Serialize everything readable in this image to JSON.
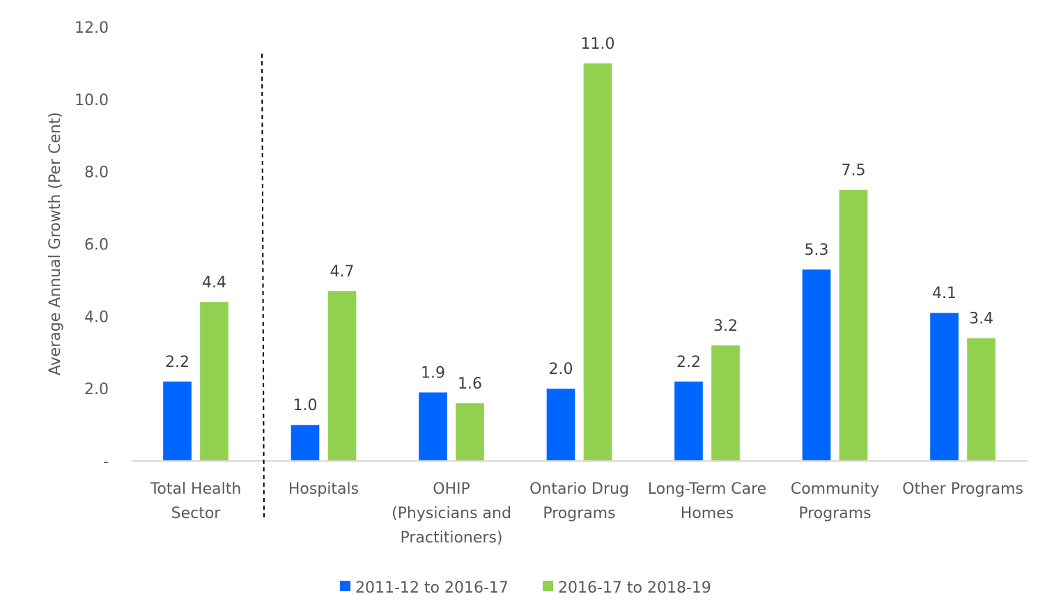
{
  "chart_data": {
    "type": "bar",
    "title": "",
    "xlabel": "",
    "ylabel": "Average Annual Growth (Per Cent)",
    "ylim": [
      0,
      12
    ],
    "yticks": [
      0,
      2,
      4,
      6,
      8,
      10,
      12
    ],
    "ytick_labels": [
      "-",
      "2.0",
      "4.0",
      "6.0",
      "8.0",
      "10.0",
      "12.0"
    ],
    "grid": false,
    "legend_position": "bottom-center",
    "categories": [
      [
        "Total Health",
        "Sector"
      ],
      [
        "Hospitals"
      ],
      [
        "OHIP",
        "(Physicians and",
        "Practitioners)"
      ],
      [
        "Ontario Drug",
        "Programs"
      ],
      [
        "Long-Term Care",
        "Homes"
      ],
      [
        "Community",
        "Programs"
      ],
      [
        "Other Programs"
      ]
    ],
    "series": [
      {
        "name": "2011-12 to 2016-17",
        "color": "#0066FF",
        "values": [
          2.2,
          1.0,
          1.9,
          2.0,
          2.2,
          5.3,
          4.1
        ]
      },
      {
        "name": "2016-17 to 2018-19",
        "color": "#92D050",
        "values": [
          4.4,
          4.7,
          1.6,
          11.0,
          3.2,
          7.5,
          3.4
        ]
      }
    ],
    "annotations": [
      "dashed vertical separator after 'Total Health Sector'"
    ]
  }
}
